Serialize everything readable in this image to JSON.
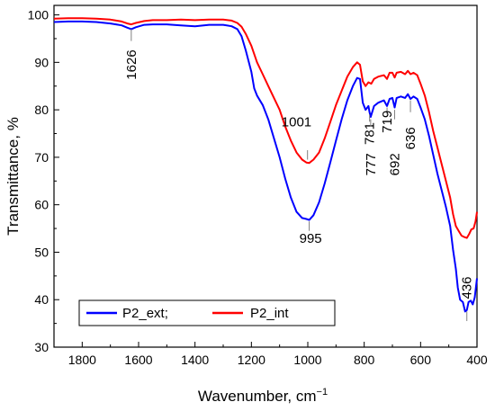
{
  "chart_data": {
    "type": "line",
    "xlabel": "Wavenumber, cm",
    "xlabel_sup": "−1",
    "ylabel": "Transmittance, %",
    "xlim": [
      1900,
      400
    ],
    "ylim": [
      30,
      102
    ],
    "x_reversed": true,
    "grid": false,
    "legend_position": "bottom-left",
    "xticks": [
      1800,
      1600,
      1400,
      1200,
      1000,
      800,
      600,
      400
    ],
    "yticks": [
      30,
      40,
      50,
      60,
      70,
      80,
      90,
      100
    ],
    "series": [
      {
        "name": "P2_ext;",
        "color": "#0000ff",
        "points": [
          [
            1900,
            98.5
          ],
          [
            1850,
            98.6
          ],
          [
            1800,
            98.6
          ],
          [
            1750,
            98.5
          ],
          [
            1700,
            98.2
          ],
          [
            1660,
            97.8
          ],
          [
            1640,
            97.3
          ],
          [
            1626,
            97.0
          ],
          [
            1610,
            97.4
          ],
          [
            1580,
            97.9
          ],
          [
            1550,
            98.0
          ],
          [
            1500,
            98.0
          ],
          [
            1450,
            97.8
          ],
          [
            1400,
            97.6
          ],
          [
            1350,
            97.9
          ],
          [
            1300,
            97.9
          ],
          [
            1270,
            97.6
          ],
          [
            1250,
            97.0
          ],
          [
            1235,
            95.5
          ],
          [
            1220,
            92.5
          ],
          [
            1200,
            88.0
          ],
          [
            1190,
            84.5
          ],
          [
            1180,
            83.0
          ],
          [
            1160,
            81.0
          ],
          [
            1140,
            78.0
          ],
          [
            1120,
            74.0
          ],
          [
            1100,
            70.0
          ],
          [
            1080,
            65.5
          ],
          [
            1060,
            61.5
          ],
          [
            1040,
            58.5
          ],
          [
            1020,
            57.2
          ],
          [
            1005,
            57.0
          ],
          [
            995,
            56.8
          ],
          [
            980,
            57.8
          ],
          [
            960,
            60.5
          ],
          [
            940,
            64.5
          ],
          [
            920,
            69.0
          ],
          [
            900,
            73.5
          ],
          [
            880,
            78.0
          ],
          [
            860,
            82.0
          ],
          [
            840,
            85.0
          ],
          [
            825,
            86.7
          ],
          [
            815,
            86.5
          ],
          [
            805,
            81.5
          ],
          [
            795,
            80.0
          ],
          [
            785,
            80.8
          ],
          [
            781,
            79.5
          ],
          [
            777,
            78.5
          ],
          [
            765,
            80.8
          ],
          [
            750,
            81.5
          ],
          [
            730,
            82.0
          ],
          [
            719,
            80.8
          ],
          [
            710,
            82.3
          ],
          [
            700,
            82.5
          ],
          [
            692,
            80.5
          ],
          [
            685,
            82.5
          ],
          [
            670,
            82.8
          ],
          [
            655,
            82.5
          ],
          [
            645,
            83.3
          ],
          [
            636,
            82.3
          ],
          [
            625,
            82.8
          ],
          [
            612,
            82.3
          ],
          [
            600,
            80.5
          ],
          [
            585,
            78.0
          ],
          [
            570,
            74.5
          ],
          [
            555,
            70.5
          ],
          [
            540,
            66.5
          ],
          [
            525,
            63.0
          ],
          [
            510,
            59.5
          ],
          [
            495,
            55.5
          ],
          [
            485,
            50.5
          ],
          [
            475,
            46.5
          ],
          [
            468,
            42.5
          ],
          [
            460,
            40.0
          ],
          [
            450,
            39.5
          ],
          [
            442,
            37.5
          ],
          [
            436,
            37.8
          ],
          [
            430,
            39.5
          ],
          [
            422,
            39.8
          ],
          [
            415,
            39.0
          ],
          [
            408,
            40.5
          ],
          [
            400,
            44.5
          ]
        ]
      },
      {
        "name": "P2_int",
        "color": "#ff0000",
        "points": [
          [
            1900,
            99.2
          ],
          [
            1850,
            99.3
          ],
          [
            1800,
            99.3
          ],
          [
            1750,
            99.2
          ],
          [
            1700,
            99.0
          ],
          [
            1660,
            98.6
          ],
          [
            1640,
            98.2
          ],
          [
            1626,
            98.0
          ],
          [
            1610,
            98.3
          ],
          [
            1580,
            98.7
          ],
          [
            1550,
            98.9
          ],
          [
            1500,
            98.9
          ],
          [
            1450,
            99.0
          ],
          [
            1400,
            98.9
          ],
          [
            1350,
            99.0
          ],
          [
            1300,
            99.0
          ],
          [
            1270,
            98.8
          ],
          [
            1250,
            98.3
          ],
          [
            1235,
            97.5
          ],
          [
            1220,
            96.0
          ],
          [
            1200,
            93.5
          ],
          [
            1180,
            90.0
          ],
          [
            1160,
            87.5
          ],
          [
            1140,
            85.0
          ],
          [
            1120,
            82.5
          ],
          [
            1100,
            80.0
          ],
          [
            1080,
            76.5
          ],
          [
            1060,
            73.5
          ],
          [
            1040,
            71.0
          ],
          [
            1020,
            69.5
          ],
          [
            1005,
            68.9
          ],
          [
            995,
            68.8
          ],
          [
            980,
            69.5
          ],
          [
            960,
            71.0
          ],
          [
            940,
            74.0
          ],
          [
            920,
            77.5
          ],
          [
            900,
            81.0
          ],
          [
            880,
            84.0
          ],
          [
            860,
            87.0
          ],
          [
            840,
            89.0
          ],
          [
            825,
            90.0
          ],
          [
            815,
            89.5
          ],
          [
            805,
            86.0
          ],
          [
            795,
            85.0
          ],
          [
            785,
            85.8
          ],
          [
            775,
            85.5
          ],
          [
            765,
            86.5
          ],
          [
            750,
            87.0
          ],
          [
            730,
            87.3
          ],
          [
            719,
            86.5
          ],
          [
            710,
            87.8
          ],
          [
            700,
            87.8
          ],
          [
            692,
            86.8
          ],
          [
            685,
            87.8
          ],
          [
            670,
            88.0
          ],
          [
            655,
            87.5
          ],
          [
            645,
            88.2
          ],
          [
            636,
            87.5
          ],
          [
            625,
            87.8
          ],
          [
            612,
            87.3
          ],
          [
            600,
            85.5
          ],
          [
            585,
            83.0
          ],
          [
            570,
            79.5
          ],
          [
            555,
            75.5
          ],
          [
            540,
            72.0
          ],
          [
            525,
            68.5
          ],
          [
            510,
            65.0
          ],
          [
            495,
            61.5
          ],
          [
            485,
            58.0
          ],
          [
            475,
            55.5
          ],
          [
            465,
            54.5
          ],
          [
            455,
            53.5
          ],
          [
            445,
            53.2
          ],
          [
            436,
            53.0
          ],
          [
            428,
            53.8
          ],
          [
            420,
            54.8
          ],
          [
            412,
            55.0
          ],
          [
            405,
            56.5
          ],
          [
            400,
            58.5
          ]
        ]
      }
    ],
    "annotations": [
      {
        "text": "1626",
        "x": 1626,
        "y": 89.5,
        "rotate": -90,
        "tick": [
          97.0,
          94.5
        ]
      },
      {
        "text": "1001",
        "x": 1040,
        "y": 76.5,
        "rotate": 0,
        "tick": [
          71.5,
          69.5
        ]
      },
      {
        "text": "995",
        "x": 990,
        "y": 52.0,
        "rotate": 0,
        "tick": [
          56.5,
          54.5
        ]
      },
      {
        "text": "781",
        "x": 781,
        "y": 75.0,
        "rotate": -90,
        "tick": [
          79.0,
          77.5
        ]
      },
      {
        "text": "777",
        "x": 777,
        "y": 68.5,
        "rotate": -90,
        "tick": [
          78.0,
          76.5
        ]
      },
      {
        "text": "719",
        "x": 719,
        "y": 77.5,
        "rotate": -90,
        "tick": [
          80.5,
          79.0
        ]
      },
      {
        "text": "692",
        "x": 692,
        "y": 68.5,
        "rotate": -90,
        "tick": [
          80.0,
          78.0
        ]
      },
      {
        "text": "636",
        "x": 636,
        "y": 74.0,
        "rotate": -90,
        "tick": [
          82.0,
          79.5
        ]
      },
      {
        "text": "436",
        "x": 436,
        "y": 42.5,
        "rotate": -90,
        "tick": [
          37.5,
          35.5
        ]
      }
    ]
  }
}
